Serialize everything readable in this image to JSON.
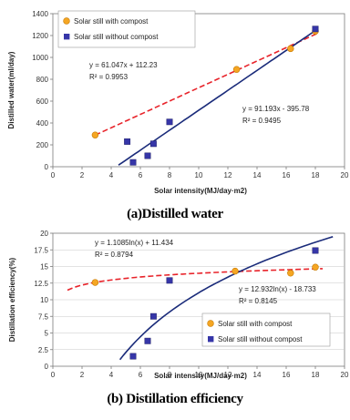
{
  "chart_data": [
    {
      "type": "scatter",
      "caption": "(a)Distilled water",
      "xlabel": "Solar intensity(MJ/day·m2)",
      "ylabel": "Distilled water(ml/day)",
      "xlim": [
        0,
        20
      ],
      "ylim": [
        0,
        1400
      ],
      "xticks": [
        "0",
        "2",
        "4",
        "6",
        "8",
        "10",
        "12",
        "14",
        "16",
        "18",
        "20"
      ],
      "yticks": [
        "0",
        "200",
        "400",
        "600",
        "800",
        "1000",
        "1200",
        "1400"
      ],
      "grid": false,
      "legend_position": "top-left",
      "series": [
        {
          "name": "Solar still with compost",
          "marker": "circle",
          "color": "#f5a623",
          "points": [
            [
              2.9,
              290
            ],
            [
              12.6,
              890
            ],
            [
              16.3,
              1080
            ],
            [
              18.0,
              1240
            ]
          ],
          "trendline": {
            "kind": "linear",
            "slope": 61.047,
            "intercept": 112.23,
            "x_range": [
              2.9,
              18.1
            ],
            "color": "#e8232a",
            "dashed": true
          },
          "equation": [
            "y = 61.047x + 112.23",
            "R² = 0.9953"
          ]
        },
        {
          "name": "Solar still without compost",
          "marker": "square",
          "color": "#3636a8",
          "points": [
            [
              5.1,
              230
            ],
            [
              5.5,
              40
            ],
            [
              6.5,
              100
            ],
            [
              6.9,
              210
            ],
            [
              8.0,
              410
            ],
            [
              18.0,
              1260
            ]
          ],
          "trendline": {
            "kind": "linear",
            "slope": 91.193,
            "intercept": -395.78,
            "x_range": [
              4.5,
              18.1
            ],
            "color": "#1a2b7a",
            "dashed": false
          },
          "equation": [
            "y = 91.193x - 395.78",
            "R² = 0.9495"
          ]
        }
      ]
    },
    {
      "type": "scatter",
      "caption": "(b) Distillation efficiency",
      "xlabel": "Solar intensity(MJ/day·m2)",
      "ylabel": "Distillation efficiency(%)",
      "xlim": [
        0,
        20
      ],
      "ylim": [
        0,
        20
      ],
      "xticks": [
        "0",
        "2",
        "4",
        "6",
        "8",
        "10",
        "12",
        "14",
        "16",
        "18",
        "20"
      ],
      "yticks": [
        "0",
        "2.5",
        "5",
        "7.5",
        "10",
        "12.5",
        "15",
        "17.5",
        "20"
      ],
      "grid": true,
      "legend_position": "bottom-right",
      "series": [
        {
          "name": "Solar still with compost",
          "marker": "circle",
          "color": "#f5a623",
          "points": [
            [
              2.9,
              12.6
            ],
            [
              12.5,
              14.3
            ],
            [
              16.3,
              14.0
            ],
            [
              18.0,
              14.9
            ]
          ],
          "trendline": {
            "kind": "log",
            "a": 1.1085,
            "b": 11.434,
            "x_range": [
              1.0,
              18.5
            ],
            "color": "#e8232a",
            "dashed": true
          },
          "equation": [
            "y = 1.1085ln(x) + 11.434",
            "R² = 0.8794"
          ]
        },
        {
          "name": "Solar still without compost",
          "marker": "square",
          "color": "#3636a8",
          "points": [
            [
              5.5,
              1.5
            ],
            [
              6.5,
              3.8
            ],
            [
              6.9,
              7.5
            ],
            [
              8.0,
              12.9
            ],
            [
              18.0,
              17.4
            ]
          ],
          "trendline": {
            "kind": "log",
            "a": 12.932,
            "b": -18.733,
            "x_range": [
              4.6,
              19.2
            ],
            "color": "#1a2b7a",
            "dashed": false
          },
          "equation": [
            "y = 12.932ln(x) - 18.733",
            "R² = 0.8145"
          ]
        }
      ]
    }
  ]
}
